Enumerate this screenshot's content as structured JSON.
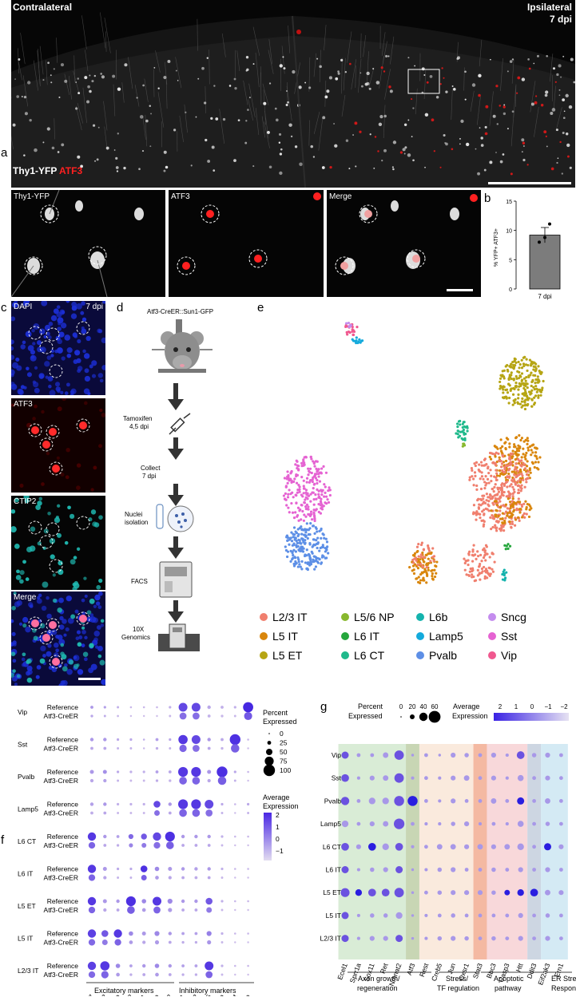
{
  "panels": {
    "a": "a",
    "b": "b",
    "c": "c",
    "d": "d",
    "e": "e",
    "f": "f",
    "g": "g"
  },
  "panel_a": {
    "left_label": "Contralateral",
    "right_label": "Ipsilateral",
    "right_sub": "7 dpi",
    "stain_green": "Thy1-YFP",
    "stain_red": "ATF3",
    "insets": [
      "Thy1-YFP",
      "ATF3",
      "Merge"
    ]
  },
  "chart_data": [
    {
      "type": "bar",
      "categories": [
        "7 dpi"
      ],
      "values": [
        9.2
      ],
      "points": [
        8.0,
        8.8,
        11.1
      ],
      "error": 1.3,
      "ylabel": "% YFP+ ATF3+",
      "ylim": [
        0,
        15
      ],
      "yticks": [
        0,
        5,
        10,
        15
      ]
    },
    {
      "type": "scatter",
      "legend": [
        {
          "name": "L2/3 IT",
          "color": "#f07f6e"
        },
        {
          "name": "L5/6 NP",
          "color": "#88b82e"
        },
        {
          "name": "L6b",
          "color": "#14b3ad"
        },
        {
          "name": "Sncg",
          "color": "#c48cee"
        },
        {
          "name": "L5 IT",
          "color": "#d9860c"
        },
        {
          "name": "L6 IT",
          "color": "#25a63c"
        },
        {
          "name": "Lamp5",
          "color": "#13aadc"
        },
        {
          "name": "Sst",
          "color": "#e563d2"
        },
        {
          "name": "L5 ET",
          "color": "#b6a514"
        },
        {
          "name": "L6 CT",
          "color": "#1fb98b"
        },
        {
          "name": "Pvalb",
          "color": "#5d8fe6"
        },
        {
          "name": "Vip",
          "color": "#f0588f"
        }
      ]
    },
    {
      "type": "heatmap",
      "rows": [
        "Vip",
        "Sst",
        "Pvalb",
        "Lamp5",
        "L6 CT",
        "L6 IT",
        "L5 ET",
        "L5 IT",
        "L2/3 IT"
      ],
      "subrows": [
        "Reference",
        "Atf3-CreER"
      ],
      "columns": [
        "Slc17a7",
        "Cux2",
        "Rorb",
        "Fezf2",
        "Sulf1",
        "Bcl11b",
        "Foxp2",
        "Gad1",
        "Gad2",
        "Lamp5",
        "Pvalb",
        "Sst",
        "Vip"
      ],
      "groups": [
        "Excitatory markers",
        "Inhibitory markers"
      ],
      "size_title": "Percent Expressed",
      "size_ticks": [
        "0",
        "25",
        "50",
        "75",
        "100"
      ],
      "color_title": "Average Expression",
      "color_ticks": [
        "2",
        "1",
        "0",
        "−1"
      ]
    },
    {
      "type": "heatmap",
      "rows": [
        "Vip",
        "Sst",
        "Pvalb",
        "Lamp5",
        "L6 CT",
        "L6 IT",
        "L5 ET",
        "L5 IT",
        "L2/3 IT"
      ],
      "columns": [
        "Ecel1",
        "Sprr1a",
        "Sox11",
        "Ret",
        "Nmnat2",
        "Atf3",
        "Rest",
        "Creb5",
        "Jun",
        "Oxsr1",
        "Stat3",
        "Bbc3",
        "Casp3",
        "Htt",
        "Ddit3",
        "Eif2ak3",
        "Ern1"
      ],
      "groups": [
        "Axon growth/ regeneration",
        "Stress/ TF regulation",
        "Apoptotic pathway",
        "ER Stress Response"
      ],
      "size_title": "Percent Expressed",
      "size_ticks": [
        "0",
        "20",
        "40",
        "60"
      ],
      "color_title": "Average Expression",
      "color_ticks": [
        "2",
        "1",
        "0",
        "−1",
        "−2"
      ]
    }
  ],
  "panel_b_xlabel": "7 dpi",
  "panel_c": {
    "labels": [
      "DAPI",
      "ATF3",
      "CTIP2",
      "Merge"
    ],
    "dpi": "7 dpi"
  },
  "panel_d": {
    "mouse": "Atf3-CreER::Sun1-GFP",
    "tamoxifen": "Tamoxifen",
    "tamoxifen_days": "4,5 dpi",
    "collect": "Collect",
    "collect_days": "7 dpi",
    "nuclei": "Nuclei",
    "isolation": "isolation",
    "facs": "FACS",
    "tenx": "10X",
    "genomics": "Genomics"
  },
  "panel_f_expressed": "Expressed",
  "panel_f_percent": "Percent",
  "panel_f_average": "Average",
  "panel_f_expression": "Expression",
  "panel_g_groups_line1": [
    "Axon growth/",
    "Stress/",
    "Apoptotic",
    "ER Stress"
  ],
  "panel_g_groups_line2": [
    "regeneration",
    "TF regulation",
    "pathway",
    "Response"
  ]
}
